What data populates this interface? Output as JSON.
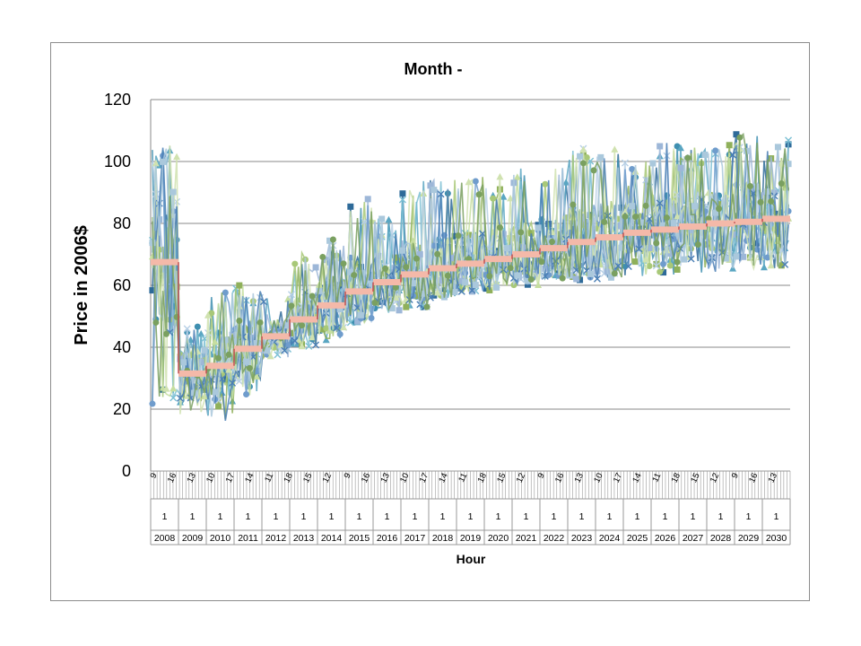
{
  "chart_data": {
    "type": "line",
    "title": "Month -",
    "ylabel": "Price in 2006$",
    "xlabel": "Hour",
    "ylim": [
      0,
      120
    ],
    "yticks": [
      0,
      20,
      40,
      60,
      80,
      100,
      120
    ],
    "grid": true,
    "x_axis_levels": {
      "hour_ticks": [
        "9",
        "16",
        "13",
        "10",
        "17",
        "14",
        "11",
        "18",
        "15",
        "12",
        "9",
        "16",
        "13",
        "10",
        "17",
        "14",
        "11",
        "18",
        "15",
        "12",
        "9",
        "16",
        "13",
        "10",
        "17",
        "14",
        "11",
        "18",
        "15",
        "12",
        "9",
        "16",
        "13"
      ],
      "month_ticks": [
        "1",
        "1",
        "1",
        "1",
        "1",
        "1",
        "1",
        "1",
        "1",
        "1",
        "1",
        "1",
        "1",
        "1",
        "1",
        "1",
        "1",
        "1",
        "1",
        "1",
        "1",
        "1",
        "1"
      ],
      "years": [
        "2008",
        "2009",
        "2010",
        "2011",
        "2012",
        "2013",
        "2014",
        "2015",
        "2016",
        "2017",
        "2018",
        "2019",
        "2020",
        "2021",
        "2022",
        "2023",
        "2024",
        "2025",
        "2026",
        "2027",
        "2028",
        "2029",
        "2030"
      ]
    },
    "annual_average_series": {
      "color": "#f4b9a9",
      "values": [
        67.5,
        31.5,
        34,
        39.5,
        43.5,
        49,
        53.5,
        58,
        61,
        63.5,
        65.5,
        67,
        68.5,
        70,
        72,
        74,
        75.5,
        77,
        78,
        79,
        80,
        80.5,
        81.5
      ]
    },
    "hourly_range_by_year": [
      {
        "year": "2008",
        "low": 21,
        "high": 106
      },
      {
        "year": "2009",
        "low": 18,
        "high": 47
      },
      {
        "year": "2010",
        "low": 16,
        "high": 58
      },
      {
        "year": "2011",
        "low": 24,
        "high": 60
      },
      {
        "year": "2012",
        "low": 36,
        "high": 56
      },
      {
        "year": "2013",
        "low": 40,
        "high": 72
      },
      {
        "year": "2014",
        "low": 42,
        "high": 75
      },
      {
        "year": "2015",
        "low": 48,
        "high": 88
      },
      {
        "year": "2016",
        "low": 51,
        "high": 82
      },
      {
        "year": "2017",
        "low": 53,
        "high": 94
      },
      {
        "year": "2018",
        "low": 56,
        "high": 95
      },
      {
        "year": "2019",
        "low": 58,
        "high": 95
      },
      {
        "year": "2020",
        "low": 58,
        "high": 95
      },
      {
        "year": "2021",
        "low": 60,
        "high": 98
      },
      {
        "year": "2022",
        "low": 62,
        "high": 98
      },
      {
        "year": "2023",
        "low": 61,
        "high": 105
      },
      {
        "year": "2024",
        "low": 62,
        "high": 105
      },
      {
        "year": "2025",
        "low": 63,
        "high": 100
      },
      {
        "year": "2026",
        "low": 63,
        "high": 106
      },
      {
        "year": "2027",
        "low": 64,
        "high": 105
      },
      {
        "year": "2028",
        "low": 64,
        "high": 106
      },
      {
        "year": "2029",
        "low": 65,
        "high": 110
      },
      {
        "year": "2030",
        "low": 65,
        "high": 107
      }
    ],
    "series_palette": [
      "#2e6a99",
      "#3f8fb0",
      "#5aa6c2",
      "#7cc0d4",
      "#8fb05a",
      "#a8c878",
      "#c6dea0",
      "#b8d0e6",
      "#9db7d8",
      "#6f9ccc",
      "#d0e2b0",
      "#4b7fb5",
      "#aac8dc",
      "#7aa060"
    ]
  }
}
